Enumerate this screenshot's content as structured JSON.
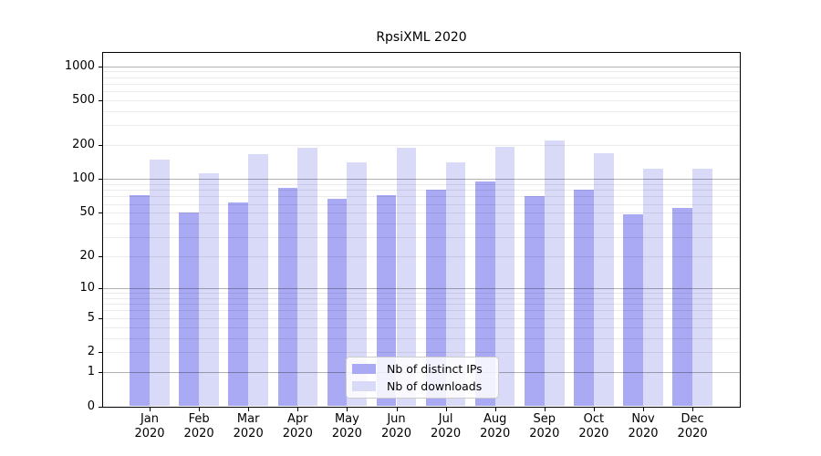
{
  "title": "RpsiXML 2020",
  "chart_data": {
    "type": "bar",
    "title": "RpsiXML 2020",
    "categories": [
      "Jan",
      "Feb",
      "Mar",
      "Apr",
      "May",
      "Jun",
      "Jul",
      "Aug",
      "Sep",
      "Oct",
      "Nov",
      "Dec"
    ],
    "category_year": "2020",
    "series": [
      {
        "name": "Nb of distinct IPs",
        "color": "#a9a9f4",
        "values": [
          72,
          50,
          62,
          83,
          67,
          72,
          81,
          95,
          70,
          81,
          48,
          55
        ]
      },
      {
        "name": "Nb of downloads",
        "color": "#d9d9f8",
        "values": [
          150,
          113,
          168,
          189,
          141,
          189,
          141,
          192,
          220,
          169,
          123,
          123
        ]
      }
    ],
    "xlabel": "",
    "ylabel": "",
    "y_scale": "log10(value+1), 0 at baseline",
    "y_ticks": [
      "1000",
      "500",
      "200",
      "100",
      "50",
      "20",
      "10",
      "5",
      "2",
      "1",
      "0"
    ],
    "ylim": [
      0,
      1250
    ],
    "grid": "on",
    "legend_position": "lower center",
    "axis_color": "#000000",
    "major_grid_color": "#b3b3b3",
    "minor_grid_color": "#ebebeb"
  }
}
